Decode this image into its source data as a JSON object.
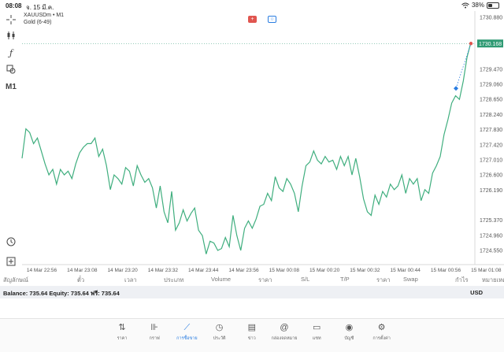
{
  "status_bar": {
    "time": "08:08",
    "date": "จ. 15 มี.ค.",
    "battery": "38%",
    "battery_level": 0.38
  },
  "chart": {
    "symbol_line": "XAUUSDm • M1",
    "indicator_line": "Gold (6-49)",
    "current_price": "1730.168",
    "price_ticks": [
      "1730.880",
      "1729.470",
      "1729.060",
      "1728.650",
      "1728.240",
      "1727.830",
      "1727.420",
      "1727.010",
      "1726.600",
      "1726.190",
      "1725.370",
      "1724.960",
      "1724.550"
    ],
    "time_ticks": [
      "14 Mar 22:56",
      "14 Mar 23:08",
      "14 Mar 23:20",
      "14 Mar 23:32",
      "14 Mar 23:44",
      "14 Mar 23:56",
      "15 Mar 00:08",
      "15 Mar 00:20",
      "15 Mar 00:32",
      "15 Mar 00:44",
      "15 Mar 00:56",
      "15 Mar 01:08"
    ],
    "line_color": "#3fae7e",
    "price_label_color": "#2e9a73",
    "buy_color": "#e0554f",
    "sell_color": "#2a7de1"
  },
  "chart_data": {
    "type": "line",
    "ylim": [
      1724.25,
      1731.05
    ],
    "x_ticks": [
      "14 Mar 22:56",
      "14 Mar 23:08",
      "14 Mar 23:20",
      "14 Mar 23:32",
      "14 Mar 23:44",
      "14 Mar 23:56",
      "15 Mar 00:08",
      "15 Mar 00:20",
      "15 Mar 00:32",
      "15 Mar 00:44",
      "15 Mar 00:56",
      "15 Mar 01:08"
    ],
    "y_ticks": [
      1730.88,
      1729.47,
      1729.06,
      1728.65,
      1728.24,
      1727.83,
      1727.42,
      1727.01,
      1726.6,
      1726.19,
      1725.37,
      1724.96,
      1724.55
    ],
    "series": [
      {
        "values": [
          1727.05,
          1727.85,
          1727.75,
          1727.45,
          1727.6,
          1727.25,
          1726.9,
          1726.6,
          1726.75,
          1726.35,
          1726.75,
          1726.6,
          1726.7,
          1726.5,
          1726.9,
          1727.2,
          1727.35,
          1727.45,
          1727.45,
          1727.6,
          1727.1,
          1727.3,
          1726.85,
          1726.2,
          1726.6,
          1726.5,
          1726.35,
          1726.8,
          1726.7,
          1726.3,
          1726.85,
          1726.6,
          1726.4,
          1726.5,
          1726.25,
          1725.7,
          1726.3,
          1725.6,
          1725.3,
          1726.15,
          1725.1,
          1725.3,
          1725.65,
          1725.35,
          1725.55,
          1725.7,
          1725.1,
          1724.95,
          1724.45,
          1724.8,
          1724.75,
          1724.55,
          1724.6,
          1724.9,
          1724.65,
          1725.5,
          1724.95,
          1724.55,
          1725.15,
          1725.35,
          1725.15,
          1725.4,
          1725.75,
          1725.8,
          1726.1,
          1725.9,
          1726.55,
          1726.25,
          1726.15,
          1726.5,
          1726.35,
          1726.1,
          1725.6,
          1726.3,
          1726.85,
          1726.95,
          1727.25,
          1727.0,
          1726.9,
          1727.1,
          1726.95,
          1727.0,
          1726.75,
          1727.1,
          1726.85,
          1727.1,
          1726.6,
          1727.05,
          1726.55,
          1725.95,
          1725.6,
          1725.5,
          1726.05,
          1725.8,
          1726.15,
          1726.0,
          1726.35,
          1726.2,
          1726.3,
          1726.6,
          1726.1,
          1726.5,
          1726.35,
          1726.5,
          1725.9,
          1726.2,
          1726.1,
          1726.65,
          1726.85,
          1727.1,
          1727.7,
          1728.1,
          1728.55,
          1728.75,
          1728.65,
          1729.15,
          1729.8,
          1730.2
        ]
      }
    ],
    "current_price": 1730.168,
    "grid": false
  },
  "columns": [
    "สัญลักษณ์",
    "ตั๋ว",
    "เวลา",
    "ประเภท",
    "Volume",
    "ราคา",
    "S/L",
    "T/P",
    "ราคา",
    "Swap",
    "กำไร",
    "หมายเหตุ"
  ],
  "balance": {
    "text": "Balance: 735.64 Equity: 735.64 ฟรี: 735.64",
    "currency": "USD"
  },
  "nav": [
    {
      "label": "ราคา",
      "icon": "quotes-icon",
      "glyph": "⇅"
    },
    {
      "label": "กราฟ",
      "icon": "chart-candles-icon",
      "glyph": "⊪"
    },
    {
      "label": "การซื้อขาย",
      "icon": "trade-icon",
      "glyph": "⟋"
    },
    {
      "label": "ประวัติ",
      "icon": "history-icon",
      "glyph": "◷"
    },
    {
      "label": "ข่าว",
      "icon": "news-icon",
      "glyph": "▤"
    },
    {
      "label": "กล่องจดหมาย",
      "icon": "mailbox-icon",
      "glyph": "@"
    },
    {
      "label": "แชท",
      "icon": "chat-icon",
      "glyph": "▭"
    },
    {
      "label": "บัญชี",
      "icon": "account-icon",
      "glyph": "◉"
    },
    {
      "label": "การตั้งค่า",
      "icon": "settings-icon",
      "glyph": "⚙"
    }
  ],
  "toolbar": {
    "timeframe": "M1"
  }
}
